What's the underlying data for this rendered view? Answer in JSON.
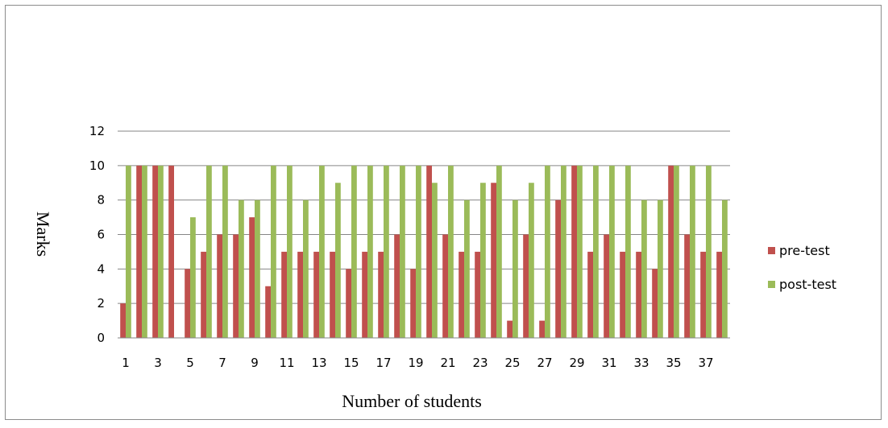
{
  "chart_data": {
    "type": "bar",
    "x": [
      1,
      2,
      3,
      4,
      5,
      6,
      7,
      8,
      9,
      10,
      11,
      12,
      13,
      14,
      15,
      16,
      17,
      18,
      19,
      20,
      21,
      22,
      23,
      24,
      25,
      26,
      27,
      28,
      29,
      30,
      31,
      32,
      33,
      34,
      35,
      36,
      37,
      38
    ],
    "x_tick_labels": [
      "1",
      "3",
      "5",
      "7",
      "9",
      "11",
      "13",
      "15",
      "17",
      "19",
      "21",
      "23",
      "25",
      "27",
      "29",
      "31",
      "33",
      "35",
      "37"
    ],
    "series": [
      {
        "name": "pre-test",
        "color": "#c0504d",
        "values": [
          2,
          10,
          10,
          10,
          4,
          5,
          6,
          6,
          7,
          3,
          5,
          5,
          5,
          5,
          4,
          5,
          5,
          6,
          4,
          10,
          6,
          5,
          5,
          9,
          1,
          6,
          1,
          8,
          10,
          5,
          6,
          5,
          5,
          4,
          10,
          6,
          5,
          5
        ]
      },
      {
        "name": "post-test",
        "color": "#9bbb59",
        "values": [
          10,
          10,
          10,
          0,
          7,
          10,
          10,
          8,
          8,
          10,
          10,
          8,
          10,
          9,
          10,
          10,
          10,
          10,
          10,
          9,
          10,
          8,
          9,
          10,
          8,
          9,
          10,
          10,
          10,
          10,
          10,
          10,
          8,
          8,
          10,
          10,
          10,
          8
        ]
      }
    ],
    "y_ticks": [
      "0",
      "2",
      "4",
      "6",
      "8",
      "10",
      "12"
    ],
    "ylim": [
      0,
      12
    ],
    "xlabel": "Number of students",
    "ylabel": "Marks",
    "grid": true,
    "legend_position": "right"
  }
}
